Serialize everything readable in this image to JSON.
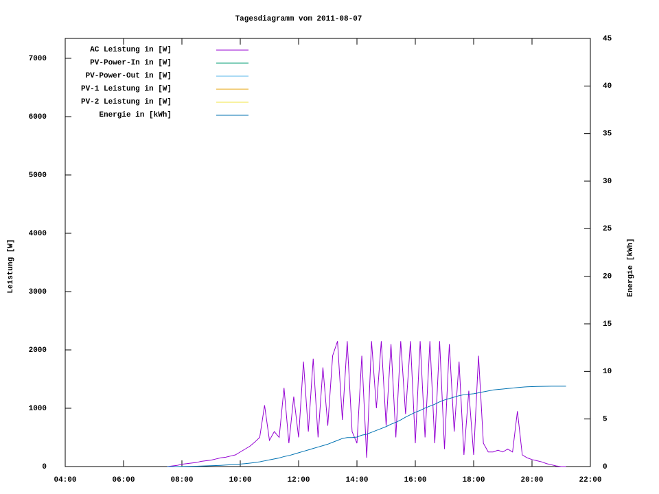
{
  "chart_data": {
    "type": "line",
    "title": "Tagesdiagramm vom 2011-08-07",
    "ylabel": "Leistung [W]",
    "y2label": "Energie [kWh]",
    "x": [
      450,
      460,
      470,
      480,
      490,
      500,
      510,
      520,
      530,
      540,
      550,
      560,
      570,
      580,
      590,
      600,
      610,
      620,
      630,
      640,
      650,
      660,
      670,
      680,
      690,
      700,
      710,
      720,
      730,
      740,
      750,
      760,
      770,
      780,
      790,
      800,
      810,
      820,
      830,
      840,
      850,
      860,
      870,
      880,
      890,
      900,
      910,
      920,
      930,
      940,
      950,
      960,
      970,
      980,
      990,
      1000,
      1010,
      1020,
      1030,
      1040,
      1050,
      1060,
      1070,
      1080,
      1090,
      1100,
      1110,
      1120,
      1130,
      1140,
      1150,
      1160,
      1170,
      1180,
      1190,
      1200,
      1210,
      1220,
      1230,
      1240,
      1250,
      1260,
      1270
    ],
    "xlim": [
      240,
      1320
    ],
    "xticks": [
      {
        "value": 240,
        "label": "04:00"
      },
      {
        "value": 360,
        "label": "06:00"
      },
      {
        "value": 480,
        "label": "08:00"
      },
      {
        "value": 600,
        "label": "10:00"
      },
      {
        "value": 720,
        "label": "12:00"
      },
      {
        "value": 840,
        "label": "14:00"
      },
      {
        "value": 960,
        "label": "16:00"
      },
      {
        "value": 1080,
        "label": "18:00"
      },
      {
        "value": 1200,
        "label": "20:00"
      },
      {
        "value": 1320,
        "label": "22:00"
      }
    ],
    "ylim": [
      0,
      7341
    ],
    "yticks": [
      0,
      1000,
      2000,
      3000,
      4000,
      5000,
      6000,
      7000
    ],
    "y2lim": [
      0,
      45
    ],
    "y2ticks": [
      0,
      5,
      10,
      15,
      20,
      25,
      30,
      35,
      40,
      45
    ],
    "legend": "top-left",
    "series": [
      {
        "name": "AC Leistung in [W]",
        "color": "#9400d3",
        "values": [
          0,
          10,
          20,
          40,
          50,
          60,
          70,
          90,
          100,
          110,
          130,
          150,
          160,
          180,
          200,
          250,
          300,
          350,
          420,
          500,
          1050,
          450,
          600,
          500,
          1350,
          400,
          1200,
          500,
          1800,
          600,
          1850,
          500,
          1700,
          700,
          1900,
          2150,
          800,
          2150,
          600,
          400,
          1900,
          150,
          2150,
          1000,
          2150,
          700,
          2100,
          500,
          2150,
          900,
          2150,
          400,
          2150,
          500,
          2150,
          400,
          2150,
          300,
          2100,
          600,
          1800,
          200,
          1300,
          200,
          1900,
          400,
          250,
          250,
          280,
          250,
          300,
          250,
          950,
          200,
          150,
          120,
          100,
          80,
          50,
          30,
          10,
          0,
          0
        ]
      },
      {
        "name": "PV-Power-In in [W]",
        "color": "#009e73",
        "values": [
          null,
          null,
          null,
          null,
          null,
          null,
          null,
          null,
          null,
          null,
          null,
          null,
          null,
          null,
          null,
          null,
          null,
          null,
          null,
          null,
          null,
          null,
          null,
          null,
          null,
          null,
          null,
          null,
          null,
          null,
          null,
          null,
          null,
          null,
          null,
          null,
          null,
          null,
          null,
          null,
          null,
          null,
          null,
          null,
          null,
          null,
          null,
          null,
          null,
          null,
          null,
          null,
          null,
          null,
          null,
          null,
          null,
          null,
          null,
          null,
          null,
          null,
          null,
          null,
          null,
          null,
          null,
          null,
          null,
          null,
          null,
          null,
          null,
          null,
          null,
          null,
          null,
          null,
          null,
          null,
          null,
          null,
          null
        ]
      },
      {
        "name": "PV-Power-Out in [W]",
        "color": "#56b4e9",
        "values": [
          null,
          null,
          null,
          null,
          null,
          null,
          null,
          null,
          null,
          null,
          null,
          null,
          null,
          null,
          null,
          null,
          null,
          null,
          null,
          null,
          null,
          null,
          null,
          null,
          null,
          null,
          null,
          null,
          null,
          null,
          null,
          null,
          null,
          null,
          null,
          null,
          null,
          null,
          null,
          null,
          null,
          null,
          null,
          null,
          null,
          null,
          null,
          null,
          null,
          null,
          null,
          null,
          null,
          null,
          null,
          null,
          null,
          null,
          null,
          null,
          null,
          null,
          null,
          null,
          null,
          null,
          null,
          null,
          null,
          null,
          null,
          null,
          null,
          null,
          null,
          null,
          null,
          null,
          null,
          null,
          null,
          null,
          null
        ]
      },
      {
        "name": "PV-1 Leistung in [W]",
        "color": "#e69f00",
        "values": [
          null,
          null,
          null,
          null,
          null,
          null,
          null,
          null,
          null,
          null,
          null,
          null,
          null,
          null,
          null,
          null,
          null,
          null,
          null,
          null,
          null,
          null,
          null,
          null,
          null,
          null,
          null,
          null,
          null,
          null,
          null,
          null,
          null,
          null,
          null,
          null,
          null,
          null,
          null,
          null,
          null,
          null,
          null,
          null,
          null,
          null,
          null,
          null,
          null,
          null,
          null,
          null,
          null,
          null,
          null,
          null,
          null,
          null,
          null,
          null,
          null,
          null,
          null,
          null,
          null,
          null,
          null,
          null,
          null,
          null,
          null,
          null,
          null,
          null,
          null,
          null,
          null,
          null,
          null,
          null,
          null,
          null,
          null
        ]
      },
      {
        "name": "PV-2 Leistung in [W]",
        "color": "#f0e442",
        "values": [
          null,
          null,
          null,
          null,
          null,
          null,
          null,
          null,
          null,
          null,
          null,
          null,
          null,
          null,
          null,
          null,
          null,
          null,
          null,
          null,
          null,
          null,
          null,
          null,
          null,
          null,
          null,
          null,
          null,
          null,
          null,
          null,
          null,
          null,
          null,
          null,
          null,
          null,
          null,
          null,
          null,
          null,
          null,
          null,
          null,
          null,
          null,
          null,
          null,
          null,
          null,
          null,
          null,
          null,
          null,
          null,
          null,
          null,
          null,
          null,
          null,
          null,
          null,
          null,
          null,
          null,
          null,
          null,
          null,
          null,
          null,
          null,
          null,
          null,
          null,
          null,
          null,
          null,
          null,
          null,
          null,
          null,
          null
        ]
      },
      {
        "name": "Energie in [kWh]",
        "color": "#0072b2",
        "axis": "y2",
        "values": [
          0,
          0,
          0,
          0.01,
          0.02,
          0.03,
          0.04,
          0.05,
          0.07,
          0.09,
          0.11,
          0.13,
          0.16,
          0.19,
          0.22,
          0.26,
          0.31,
          0.36,
          0.42,
          0.5,
          0.6,
          0.7,
          0.8,
          0.9,
          1.05,
          1.15,
          1.3,
          1.45,
          1.6,
          1.75,
          1.9,
          2.05,
          2.2,
          2.35,
          2.55,
          2.75,
          2.95,
          3.05,
          3.05,
          3.1,
          3.3,
          3.4,
          3.6,
          3.8,
          4.0,
          4.2,
          4.45,
          4.65,
          4.9,
          5.2,
          5.45,
          5.7,
          5.9,
          6.15,
          6.35,
          6.55,
          6.8,
          7.0,
          7.15,
          7.3,
          7.45,
          7.55,
          7.6,
          7.65,
          7.75,
          7.85,
          7.95,
          8.05,
          8.1,
          8.15,
          8.2,
          8.25,
          8.3,
          8.35,
          8.38,
          8.4,
          8.42,
          8.43,
          8.44,
          8.45,
          8.45,
          8.45,
          8.45
        ]
      }
    ]
  }
}
